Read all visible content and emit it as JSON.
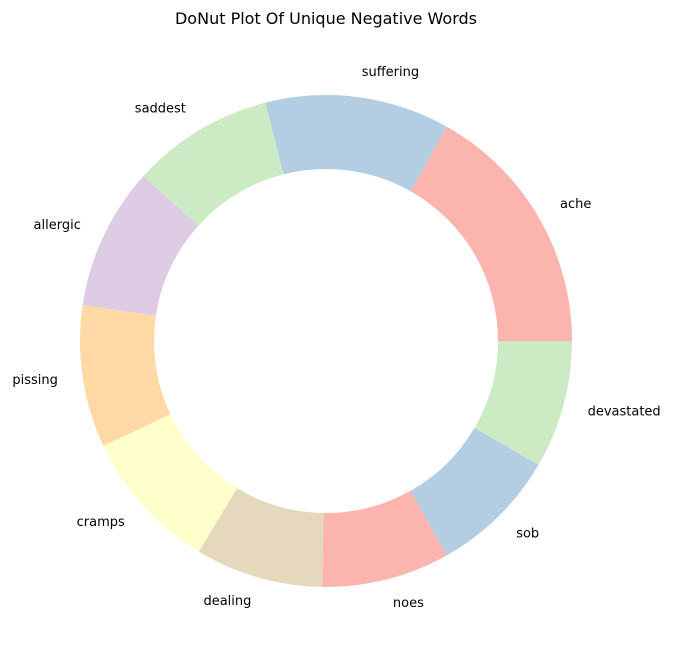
{
  "chart_data": {
    "type": "pie",
    "title": "DoNut Plot Of Unique Negative Words",
    "donut": true,
    "labels": [
      "ache",
      "suffering",
      "saddest",
      "allergic",
      "pissing",
      "cramps",
      "dealing",
      "noes",
      "sob",
      "devastated"
    ],
    "values": [
      18,
      13,
      10,
      10,
      10,
      10,
      9,
      9,
      9,
      9
    ],
    "colors": [
      "#fbb4ae",
      "#b3cde3",
      "#ccebc5",
      "#decbe4",
      "#fed9a6",
      "#ffffcc",
      "#e5d8bd",
      "#fbb4ae",
      "#b3cde3",
      "#ccebc5"
    ],
    "start_angle": "0°, counterclockwise",
    "legend": "none"
  }
}
